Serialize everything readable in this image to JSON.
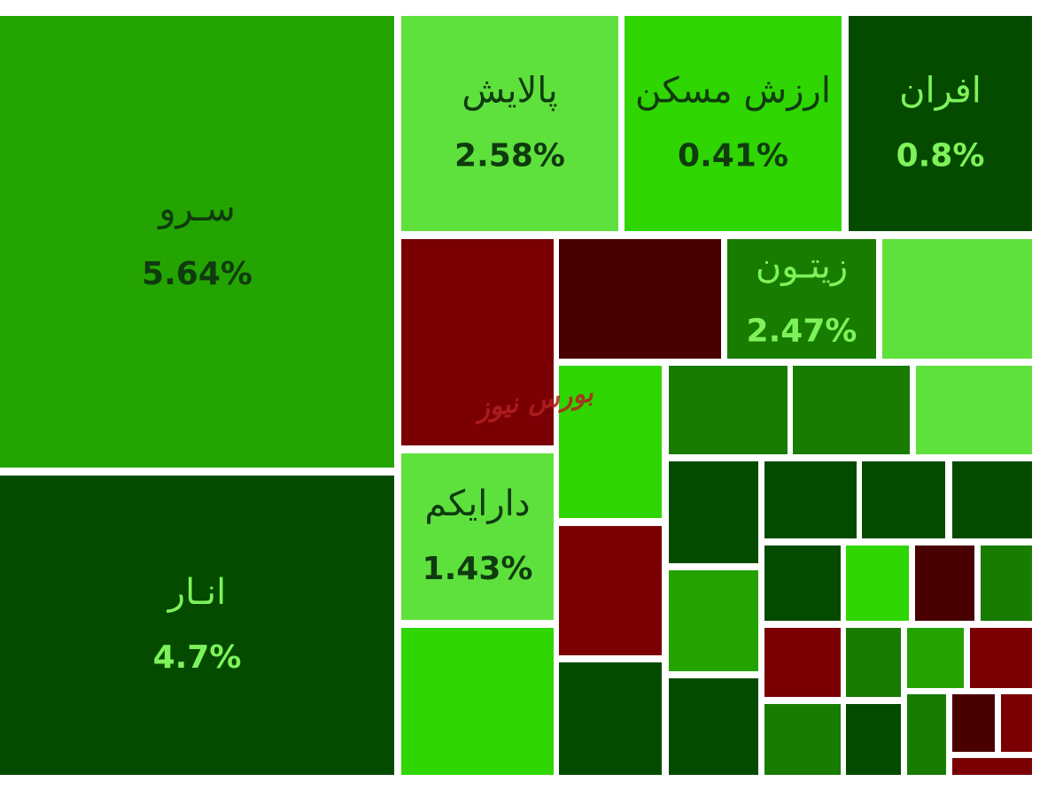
{
  "watermark": "بورس نیوز",
  "chart_data": {
    "type": "treemap",
    "colors": {
      "green_strong": "#24a400",
      "green_dark": "#044b00",
      "green_light": "#5fe13d",
      "green_bright": "#2fd601",
      "green_mid": "#187c00",
      "green_mid2": "#23a200",
      "red": "#7a0004",
      "red_dark": "#480000",
      "text_dark": "#0f3b0f",
      "text_light": "#7ef25a",
      "watermark": "#b41e1e"
    },
    "items": [
      {
        "name": "سـرو",
        "value": "5.64%"
      },
      {
        "name": "انـار",
        "value": "4.7%"
      },
      {
        "name": "پالایش",
        "value": "2.58%"
      },
      {
        "name": "ارزش مسکن",
        "value": "0.41%"
      },
      {
        "name": "افران",
        "value": "0.8%"
      },
      {
        "name": "زیتـون",
        "value": "2.47%"
      },
      {
        "name": "دارایکم",
        "value": "1.43%"
      }
    ]
  }
}
